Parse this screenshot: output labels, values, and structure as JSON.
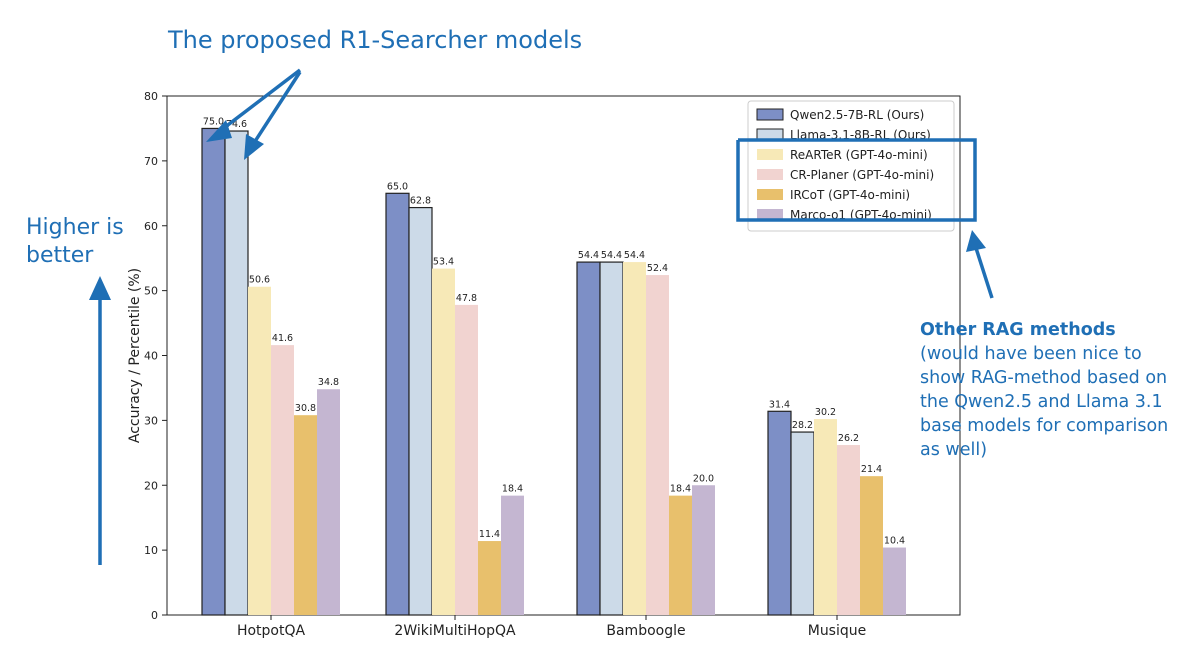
{
  "chart_data": {
    "type": "bar",
    "title": "",
    "xlabel": "",
    "ylabel": "Accuracy / Percentile (%)",
    "ylim": [
      0,
      80
    ],
    "yticks": [
      0,
      10,
      20,
      30,
      40,
      50,
      60,
      70,
      80
    ],
    "categories": [
      "HotpotQA",
      "2WikiMultiHopQA",
      "Bamboogle",
      "Musique"
    ],
    "series": [
      {
        "name": "Qwen2.5-7B-RL (Ours)",
        "color": "#7d8fc6",
        "outlined": true,
        "values": [
          75.0,
          65.0,
          54.4,
          31.4
        ]
      },
      {
        "name": "Llama-3.1-8B-RL (Ours)",
        "color": "#ccdae8",
        "outlined": true,
        "values": [
          74.6,
          62.8,
          54.4,
          28.2
        ]
      },
      {
        "name": "ReARTeR (GPT-4o-mini)",
        "color": "#f7e9b7",
        "outlined": false,
        "values": [
          50.6,
          53.4,
          54.4,
          30.2
        ]
      },
      {
        "name": "CR-Planer (GPT-4o-mini)",
        "color": "#f1d3d0",
        "outlined": false,
        "values": [
          41.6,
          47.8,
          52.4,
          26.2
        ]
      },
      {
        "name": "IRCoT (GPT-4o-mini)",
        "color": "#e8c06c",
        "outlined": false,
        "values": [
          30.8,
          11.4,
          18.4,
          21.4
        ]
      },
      {
        "name": "Marco-o1 (GPT-4o-mini)",
        "color": "#c4b6d1",
        "outlined": false,
        "values": [
          34.8,
          18.4,
          20.0,
          10.4
        ]
      }
    ],
    "value_labels": [
      [
        "75.0",
        "65.0",
        "54.4",
        "31.4"
      ],
      [
        "74.6",
        "62.8",
        "54.4",
        "28.2"
      ],
      [
        "50.6",
        "53.4",
        "54.4",
        "30.2"
      ],
      [
        "41.6",
        "47.8",
        "52.4",
        "26.2"
      ],
      [
        "30.8",
        "11.4",
        "18.4",
        "21.4"
      ],
      [
        "34.8",
        "18.4",
        "20.0",
        "10.4"
      ]
    ],
    "legend_position": "top-right",
    "grid": false
  },
  "annotations": {
    "top": "The proposed R1-Searcher models",
    "left": "Higher is better",
    "right_title": "Other RAG methods",
    "right_body": "(would have been nice to show RAG-method based on the Qwen2.5 and Llama 3.1 base models for comparison as well)",
    "color": "#1f6fb5"
  }
}
